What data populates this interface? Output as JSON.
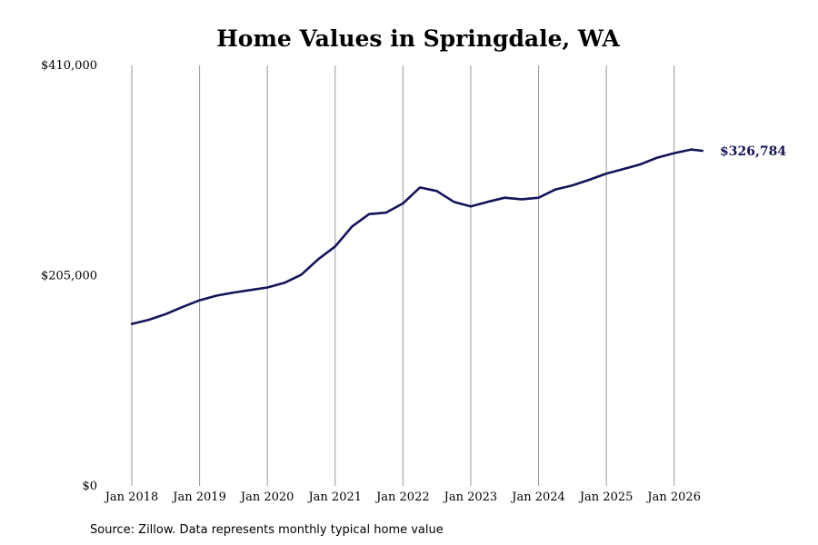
{
  "chart_data": {
    "type": "line",
    "title": "Home Values in Springdale, WA",
    "source": "Source: Zillow. Data represents monthly typical home value",
    "y_ticks": [
      "$0",
      "$205,000",
      "$410,000"
    ],
    "y_tick_values": [
      0,
      205000,
      410000
    ],
    "ylim": [
      0,
      410000
    ],
    "x_ticks": [
      "Jan 2018",
      "Jan 2019",
      "Jan 2020",
      "Jan 2021",
      "Jan 2022",
      "Jan 2023",
      "Jan 2024",
      "Jan 2025",
      "Jan 2026"
    ],
    "x_tick_dates": [
      "2018-01",
      "2019-01",
      "2020-01",
      "2021-01",
      "2022-01",
      "2023-01",
      "2024-01",
      "2025-01",
      "2026-01"
    ],
    "xlim": [
      "2018-01",
      "2026-07"
    ],
    "grid": "vertical",
    "end_label": "$326,784",
    "series": [
      {
        "color": "#14145a",
        "x": [
          "2018-01",
          "2018-04",
          "2018-07",
          "2018-10",
          "2019-01",
          "2019-04",
          "2019-07",
          "2019-10",
          "2020-01",
          "2020-04",
          "2020-07",
          "2020-10",
          "2021-01",
          "2021-04",
          "2021-07",
          "2021-10",
          "2022-01",
          "2022-04",
          "2022-07",
          "2022-10",
          "2023-01",
          "2023-04",
          "2023-07",
          "2023-10",
          "2024-01",
          "2024-04",
          "2024-07",
          "2024-10",
          "2025-01",
          "2025-04",
          "2025-07",
          "2025-10",
          "2026-01",
          "2026-04",
          "2026-06"
        ],
        "values": [
          158000,
          162000,
          167500,
          174500,
          181000,
          185500,
          188500,
          191000,
          193500,
          198000,
          206000,
          221000,
          233500,
          253000,
          265000,
          266500,
          275500,
          291000,
          287500,
          277000,
          272500,
          277000,
          281000,
          279500,
          281000,
          289000,
          293000,
          298500,
          304500,
          309000,
          313500,
          320000,
          324500,
          328000,
          326784
        ]
      }
    ]
  }
}
